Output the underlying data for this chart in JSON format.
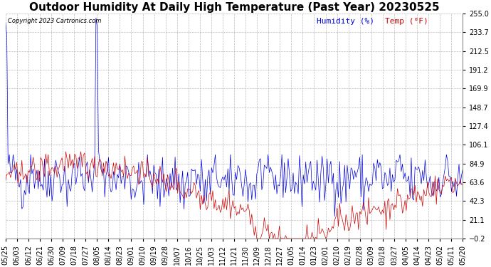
{
  "title": "Outdoor Humidity At Daily High Temperature (Past Year) 20230525",
  "copyright": "Copyright 2023 Cartronics.com",
  "legend_humidity": "Humidity (%)",
  "legend_temp": "Temp (°F)",
  "humidity_color": "#0000dd",
  "temp_color": "#cc0000",
  "bg_color": "#ffffff",
  "grid_color": "#bbbbbb",
  "ylim_min": -0.2,
  "ylim_max": 255.0,
  "yticks": [
    255.0,
    233.7,
    212.5,
    191.2,
    169.9,
    148.7,
    127.4,
    106.1,
    84.9,
    63.6,
    42.3,
    21.1,
    -0.2
  ],
  "xtick_labels": [
    "05/25",
    "06/03",
    "06/12",
    "06/21",
    "06/30",
    "07/09",
    "07/18",
    "07/27",
    "08/05",
    "08/14",
    "08/23",
    "09/01",
    "09/10",
    "09/19",
    "09/28",
    "10/07",
    "10/16",
    "10/25",
    "11/03",
    "11/12",
    "11/21",
    "11/30",
    "12/09",
    "12/18",
    "12/27",
    "01/05",
    "01/14",
    "01/23",
    "02/01",
    "02/10",
    "02/19",
    "02/28",
    "03/09",
    "03/18",
    "03/27",
    "04/05",
    "04/14",
    "04/23",
    "05/02",
    "05/11",
    "05/20"
  ],
  "title_fontsize": 11,
  "tick_fontsize": 7,
  "legend_fontsize": 8
}
